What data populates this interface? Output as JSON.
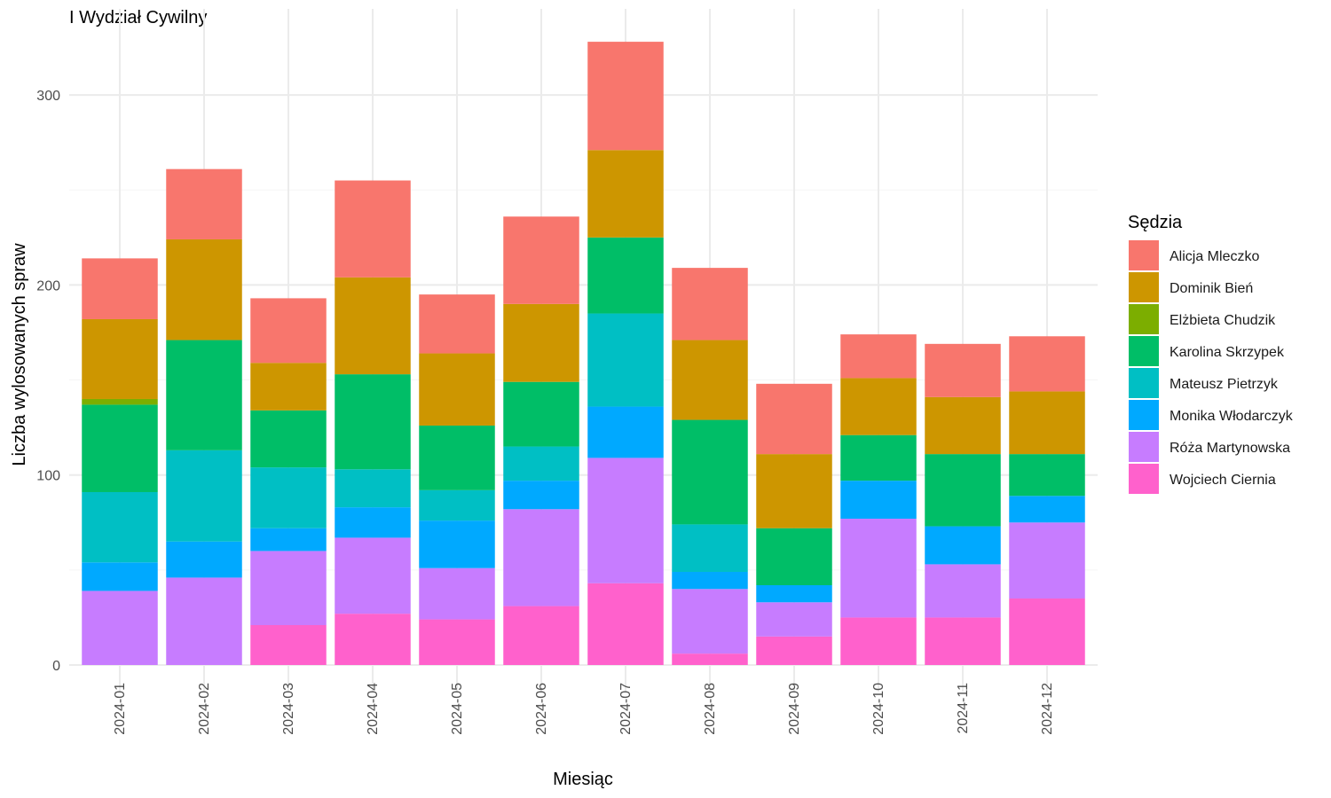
{
  "chart_data": {
    "type": "bar",
    "stacked": true,
    "title": "I Wydział Cywilny",
    "xlabel": "Miesiąc",
    "ylabel": "Liczba wylosowanych spraw",
    "ylim": [
      0,
      330
    ],
    "yticks": [
      0,
      100,
      200,
      300
    ],
    "grid": true,
    "legend": {
      "title": "Sędzia",
      "placement": "right"
    },
    "categories": [
      "2024-01",
      "2024-02",
      "2024-03",
      "2024-04",
      "2024-05",
      "2024-06",
      "2024-07",
      "2024-08",
      "2024-09",
      "2024-10",
      "2024-11",
      "2024-12"
    ],
    "series": [
      {
        "name": "Wojciech Ciernia",
        "color": "#FF61CC",
        "values": [
          0,
          0,
          21,
          27,
          24,
          31,
          43,
          6,
          15,
          25,
          25,
          35
        ]
      },
      {
        "name": "Róża Martynowska",
        "color": "#C77CFF",
        "values": [
          39,
          46,
          39,
          40,
          27,
          51,
          66,
          34,
          18,
          52,
          28,
          40
        ]
      },
      {
        "name": "Monika Włodarczyk",
        "color": "#00A9FF",
        "values": [
          15,
          19,
          12,
          16,
          25,
          15,
          27,
          9,
          9,
          20,
          20,
          14
        ]
      },
      {
        "name": "Mateusz Pietrzyk",
        "color": "#00BFC4",
        "values": [
          37,
          48,
          32,
          20,
          16,
          18,
          49,
          25,
          0,
          0,
          0,
          0
        ]
      },
      {
        "name": "Karolina Skrzypek",
        "color": "#00BE67",
        "values": [
          46,
          58,
          30,
          50,
          34,
          34,
          40,
          55,
          30,
          24,
          38,
          22
        ]
      },
      {
        "name": "Elżbieta Chudzik",
        "color": "#7CAE00",
        "values": [
          3,
          0,
          0,
          0,
          0,
          0,
          0,
          0,
          0,
          0,
          0,
          0
        ]
      },
      {
        "name": "Dominik Bień",
        "color": "#CD9600",
        "values": [
          42,
          53,
          25,
          51,
          38,
          41,
          46,
          42,
          39,
          30,
          30,
          33
        ]
      },
      {
        "name": "Alicja Mleczko",
        "color": "#F8766D",
        "values": [
          32,
          37,
          34,
          51,
          31,
          46,
          57,
          38,
          37,
          23,
          28,
          29
        ]
      }
    ]
  }
}
